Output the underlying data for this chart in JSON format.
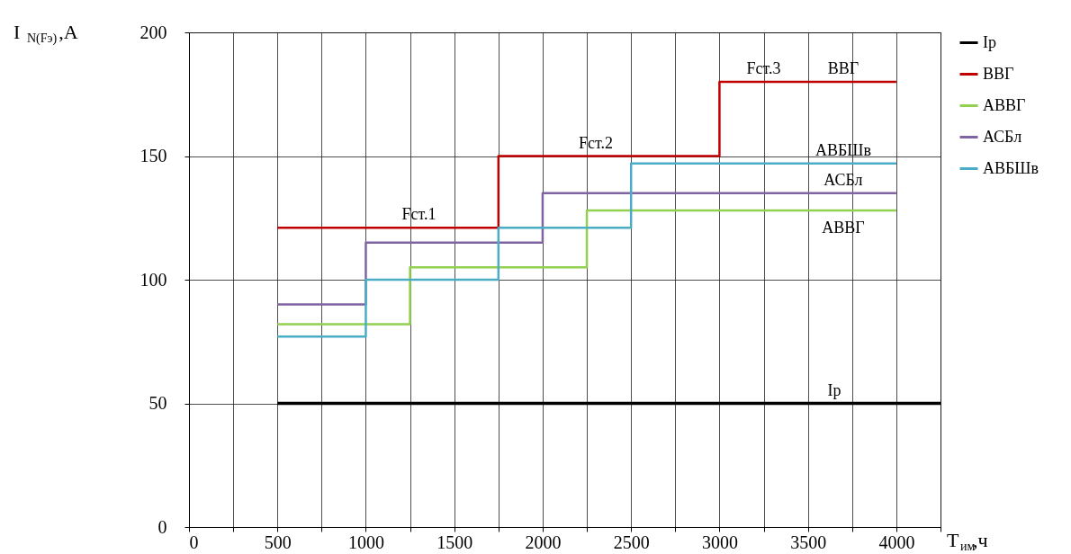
{
  "chart_data": {
    "type": "step",
    "xlabel": "T$_{им}$,ч",
    "ylabel": "I$_{N(Fэ)}$,A",
    "xlim": [
      0,
      4250
    ],
    "ylim": [
      0,
      200
    ],
    "xticks": [
      0,
      {
        "value": 250,
        "label": null
      },
      500,
      {
        "value": 750,
        "label": null
      },
      1000,
      {
        "value": 1250,
        "label": null
      },
      1500,
      {
        "value": 1750,
        "label": null
      },
      2000,
      {
        "value": 2250,
        "label": null
      },
      2500,
      {
        "value": 2750,
        "label": null
      },
      3000,
      {
        "value": 3250,
        "label": null
      },
      3500,
      {
        "value": 3750,
        "label": null
      },
      4000,
      {
        "value": 4250,
        "label": null
      }
    ],
    "yticks": [
      0,
      50,
      100,
      150,
      200
    ],
    "grid": true,
    "legend": "right",
    "line_style": "solid",
    "marker": "none",
    "series": [
      {
        "name": "Ip",
        "color": "#000000",
        "x": [
          500,
          4250
        ],
        "values": [
          50,
          50
        ]
      },
      {
        "name": "ВВГ",
        "color": "#c00000",
        "x": [
          500,
          1750,
          3000,
          4000
        ],
        "values": [
          121,
          150,
          180,
          180
        ]
      },
      {
        "name": "АВВГ",
        "color": "#92d050",
        "x": [
          500,
          1250,
          2250,
          4000
        ],
        "values": [
          82,
          105,
          128,
          128
        ]
      },
      {
        "name": "АСБл",
        "color": "#8064a2",
        "x": [
          500,
          1000,
          2000,
          4000
        ],
        "values": [
          90,
          115,
          135,
          135
        ]
      },
      {
        "name": "АВБШв",
        "color": "#4bacc6",
        "x": [
          500,
          1000,
          1750,
          2500,
          4000
        ],
        "values": [
          77,
          100,
          121,
          147,
          147
        ]
      }
    ],
    "annotations": [
      {
        "text": "Fст.1",
        "x": 1300,
        "y": 121
      },
      {
        "text": "Fст.2",
        "x": 2300,
        "y": 150
      },
      {
        "text": "Fст.3",
        "x": 3250,
        "y": 180
      },
      {
        "text": "ВВГ",
        "x": 3700,
        "y": 180
      },
      {
        "text": "АВБШв",
        "x": 3700,
        "y": 147
      },
      {
        "text": "АСБл",
        "x": 3700,
        "y": 135
      },
      {
        "text": "АВВГ",
        "x": 3700,
        "y": 128
      },
      {
        "text": "Ip",
        "x": 3650,
        "y": 50
      }
    ]
  }
}
